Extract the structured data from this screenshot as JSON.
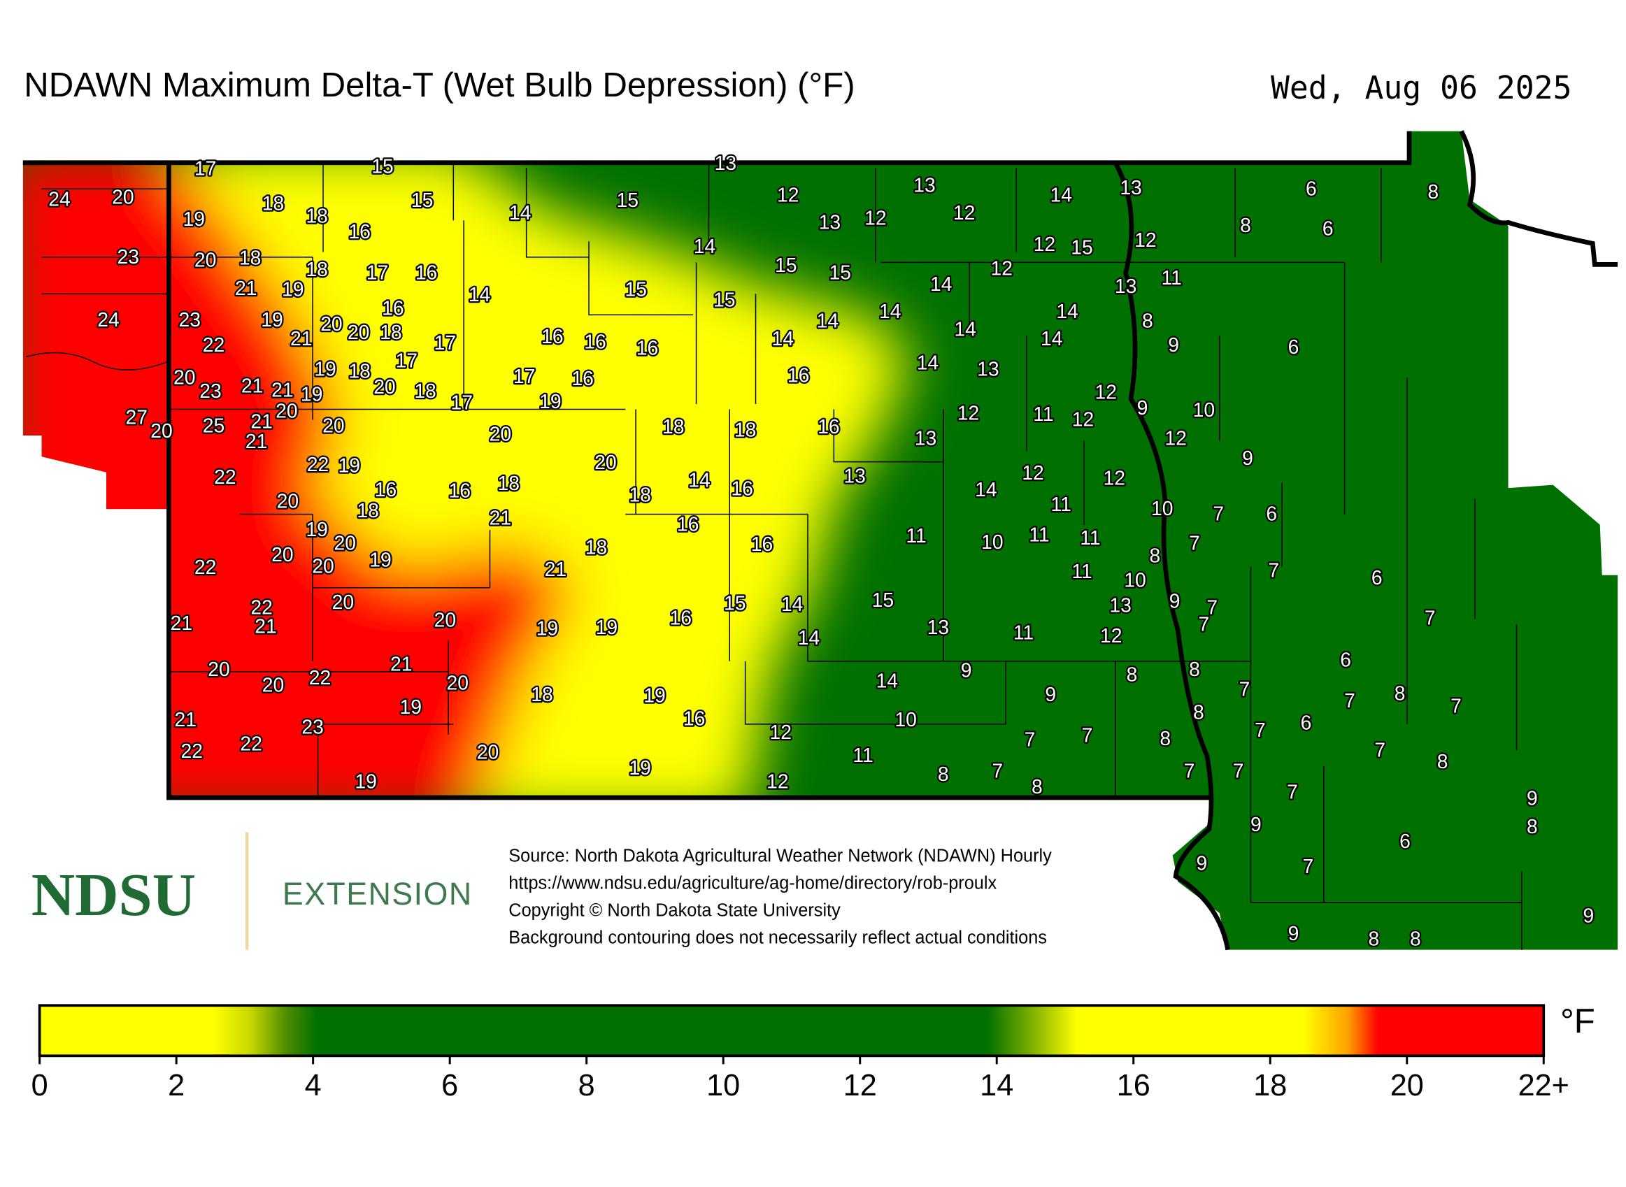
{
  "title": "NDAWN Maximum Delta-T (Wet Bulb Depression) (°F)",
  "date": "Wed, Aug 06 2025",
  "source_lines": [
    "Source: North Dakota Agricultural Weather Network (NDAWN) Hourly",
    "https://www.ndsu.edu/agriculture/ag-home/directory/rob-proulx",
    "Copyright © North Dakota State University",
    "Background contouring does not necessarily reflect actual conditions"
  ],
  "logo": {
    "name": "NDSU",
    "unit": "EXTENSION"
  },
  "legend": {
    "unit": "°F",
    "ticks": [
      0,
      2,
      4,
      6,
      8,
      10,
      12,
      14,
      16,
      18,
      20,
      {
        "value": 22,
        "label": "22+"
      }
    ]
  },
  "stations": [
    17,
    15,
    13,
    24,
    20,
    19,
    18,
    18,
    16,
    15,
    14,
    15,
    12,
    13,
    12,
    13,
    12,
    14,
    13,
    6,
    8,
    8,
    6,
    23,
    20,
    18,
    14,
    12,
    15,
    12,
    21,
    19,
    18,
    17,
    16,
    15,
    15,
    12,
    14,
    13,
    11,
    15,
    14,
    15,
    24,
    23,
    19,
    20,
    16,
    21,
    20,
    18,
    22,
    17,
    16,
    16,
    16,
    14,
    14,
    14,
    14,
    14,
    8,
    14,
    9,
    6,
    20,
    23,
    21,
    21,
    19,
    19,
    18,
    17,
    20,
    18,
    17,
    17,
    16,
    19,
    16,
    14,
    13,
    12,
    9,
    10,
    27,
    20,
    25,
    21,
    20,
    20,
    21,
    20,
    18,
    18,
    16,
    13,
    12,
    11,
    12,
    12,
    22,
    22,
    19,
    16,
    16,
    18,
    20,
    18,
    14,
    16,
    13,
    14,
    12,
    12,
    9,
    20,
    18,
    21,
    16,
    11,
    10,
    7,
    6,
    19,
    20,
    20,
    19,
    18,
    16,
    11,
    10,
    11,
    11,
    8,
    7,
    22,
    20,
    21,
    11,
    10,
    7,
    6,
    22,
    20,
    21,
    21,
    20,
    19,
    19,
    16,
    15,
    14,
    15,
    13,
    9,
    7,
    7,
    7,
    13,
    11,
    12,
    14,
    20,
    20,
    22,
    21,
    20,
    9,
    14,
    8,
    8,
    6,
    7,
    18,
    19,
    19,
    16,
    9,
    7,
    8,
    7,
    8,
    21,
    23,
    22,
    22,
    20,
    12,
    10,
    11,
    7,
    7,
    8,
    7,
    6,
    7,
    8,
    19,
    19,
    12,
    8,
    7,
    8,
    7,
    7,
    7,
    9,
    6,
    9,
    8,
    9,
    7,
    9,
    9,
    8,
    8
  ]
}
